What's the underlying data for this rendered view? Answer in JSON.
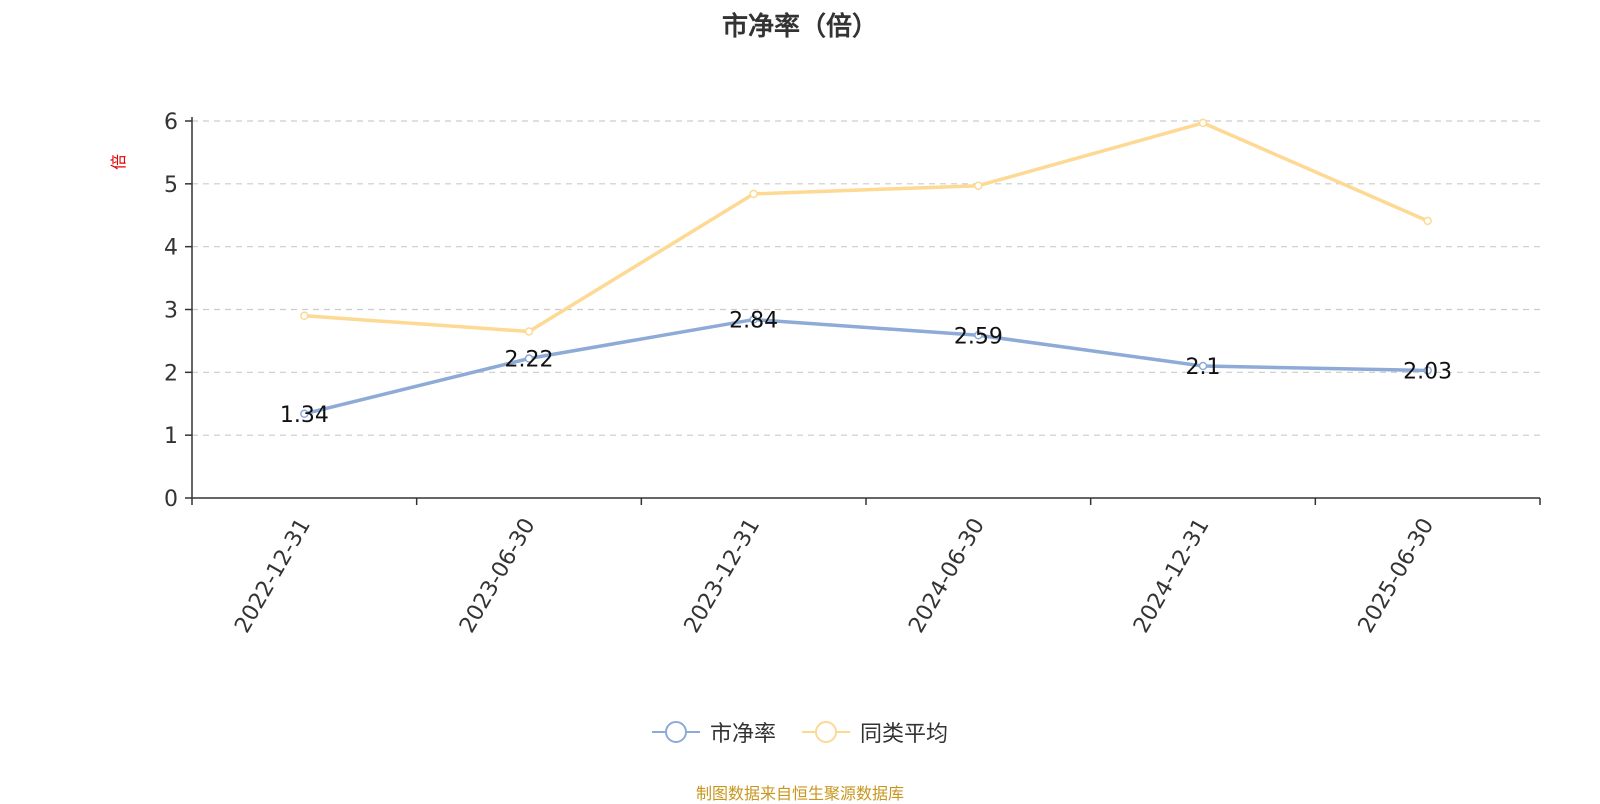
{
  "chart_data": {
    "type": "line",
    "title": "市净率（倍）",
    "ylabel": "倍",
    "xlabel": "",
    "ylim": [
      0,
      6
    ],
    "yticks": [
      "0",
      "1",
      "2",
      "3",
      "4",
      "5",
      "6"
    ],
    "categories": [
      "2022-12-31",
      "2023-06-30",
      "2023-12-31",
      "2024-06-30",
      "2024-12-31",
      "2025-06-30"
    ],
    "grid": true,
    "legend_position": "bottom-center",
    "series": [
      {
        "name": "市净率",
        "values": [
          1.34,
          2.22,
          2.84,
          2.59,
          2.1,
          2.03
        ],
        "labels": [
          "1.34",
          "2.22",
          "2.84",
          "2.59",
          "2.1",
          "2.03"
        ],
        "color": "#8eaad7"
      },
      {
        "name": "同类平均",
        "values": [
          2.9,
          2.65,
          4.84,
          4.97,
          5.97,
          4.41
        ],
        "color": "#fdd993"
      }
    ]
  },
  "source_text": "制图数据来自恒生聚源数据库",
  "colors": {
    "axis": "#333333",
    "grid": "#cccccc",
    "ylabel": "#e60000",
    "source": "#c8961e"
  }
}
